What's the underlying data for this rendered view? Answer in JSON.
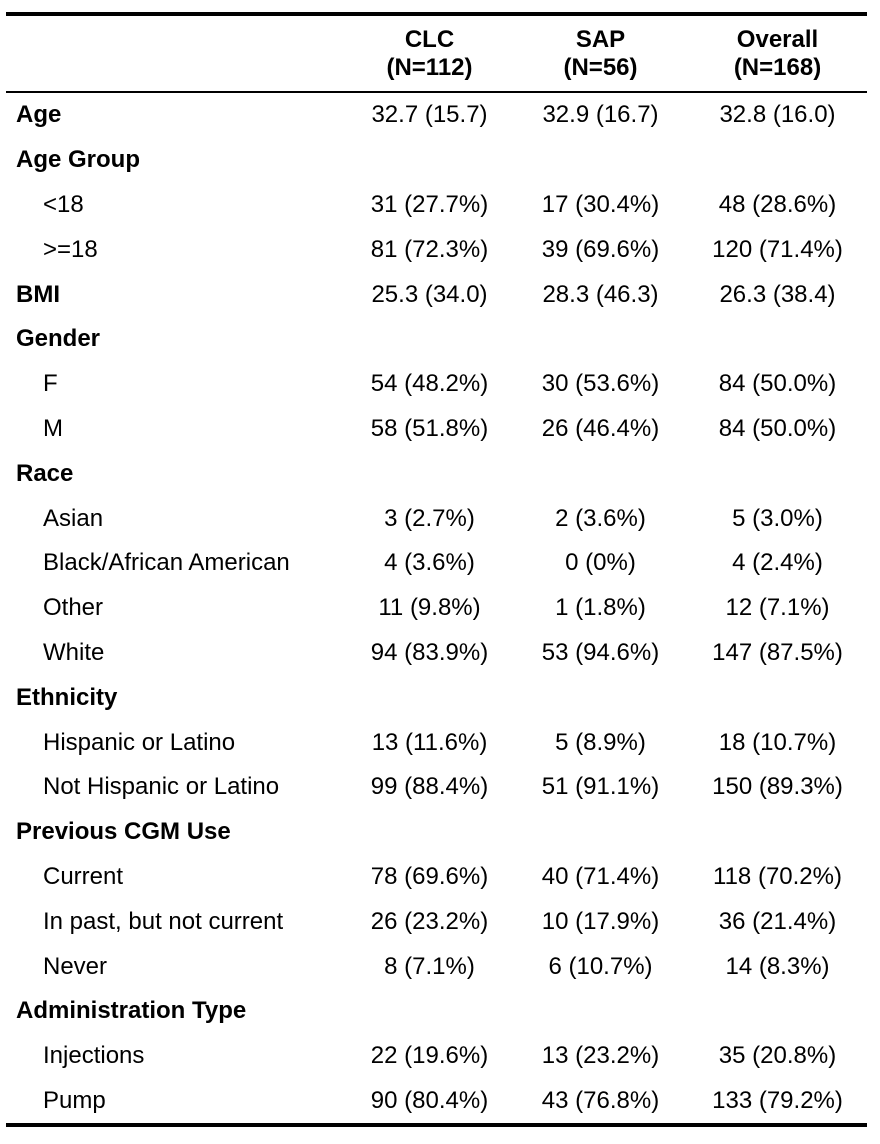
{
  "columns": [
    {
      "name": "CLC",
      "n": "(N=112)"
    },
    {
      "name": "SAP",
      "n": "(N=56)"
    },
    {
      "name": "Overall",
      "n": "(N=168)"
    }
  ],
  "rows": [
    {
      "label": "Age",
      "type": "heading",
      "values": [
        "32.7 (15.7)",
        "32.9 (16.7)",
        "32.8 (16.0)"
      ]
    },
    {
      "label": "Age Group",
      "type": "heading",
      "values": [
        "",
        "",
        ""
      ]
    },
    {
      "label": "<18",
      "type": "level",
      "values": [
        "31 (27.7%)",
        "17 (30.4%)",
        "48 (28.6%)"
      ]
    },
    {
      "label": ">=18",
      "type": "level",
      "values": [
        "81 (72.3%)",
        "39 (69.6%)",
        "120 (71.4%)"
      ]
    },
    {
      "label": "BMI",
      "type": "heading",
      "values": [
        "25.3 (34.0)",
        "28.3 (46.3)",
        "26.3 (38.4)"
      ]
    },
    {
      "label": "Gender",
      "type": "heading",
      "values": [
        "",
        "",
        ""
      ]
    },
    {
      "label": "F",
      "type": "level",
      "values": [
        "54 (48.2%)",
        "30 (53.6%)",
        "84 (50.0%)"
      ]
    },
    {
      "label": "M",
      "type": "level",
      "values": [
        "58 (51.8%)",
        "26 (46.4%)",
        "84 (50.0%)"
      ]
    },
    {
      "label": "Race",
      "type": "heading",
      "values": [
        "",
        "",
        ""
      ]
    },
    {
      "label": "Asian",
      "type": "level",
      "values": [
        "3 (2.7%)",
        "2 (3.6%)",
        "5 (3.0%)"
      ]
    },
    {
      "label": "Black/African American",
      "type": "level",
      "values": [
        "4 (3.6%)",
        "0 (0%)",
        "4 (2.4%)"
      ]
    },
    {
      "label": "Other",
      "type": "level",
      "values": [
        "11 (9.8%)",
        "1 (1.8%)",
        "12 (7.1%)"
      ]
    },
    {
      "label": "White",
      "type": "level",
      "values": [
        "94 (83.9%)",
        "53 (94.6%)",
        "147 (87.5%)"
      ]
    },
    {
      "label": "Ethnicity",
      "type": "heading",
      "values": [
        "",
        "",
        ""
      ]
    },
    {
      "label": "Hispanic or Latino",
      "type": "level",
      "values": [
        "13 (11.6%)",
        "5 (8.9%)",
        "18 (10.7%)"
      ]
    },
    {
      "label": "Not Hispanic or Latino",
      "type": "level",
      "values": [
        "99 (88.4%)",
        "51 (91.1%)",
        "150 (89.3%)"
      ]
    },
    {
      "label": "Previous CGM Use",
      "type": "heading",
      "values": [
        "",
        "",
        ""
      ]
    },
    {
      "label": "Current",
      "type": "level",
      "values": [
        "78 (69.6%)",
        "40 (71.4%)",
        "118 (70.2%)"
      ]
    },
    {
      "label": "In past, but not current",
      "type": "level",
      "values": [
        "26 (23.2%)",
        "10 (17.9%)",
        "36 (21.4%)"
      ]
    },
    {
      "label": "Never",
      "type": "level",
      "values": [
        "8 (7.1%)",
        "6 (10.7%)",
        "14 (8.3%)"
      ]
    },
    {
      "label": "Administration Type",
      "type": "heading",
      "values": [
        "",
        "",
        ""
      ]
    },
    {
      "label": "Injections",
      "type": "level",
      "values": [
        "22 (19.6%)",
        "13 (23.2%)",
        "35 (20.8%)"
      ]
    },
    {
      "label": "Pump",
      "type": "level",
      "values": [
        "90 (80.4%)",
        "43 (76.8%)",
        "133 (79.2%)"
      ]
    }
  ]
}
